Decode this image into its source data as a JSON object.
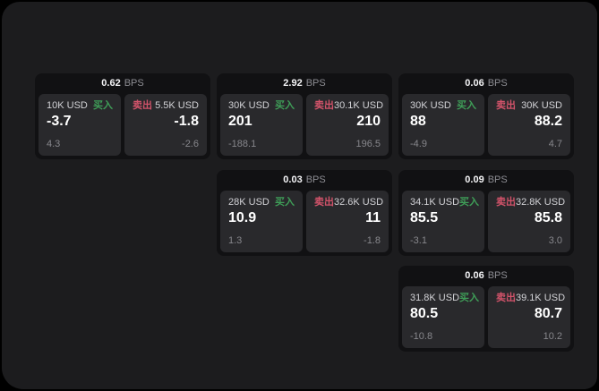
{
  "labels": {
    "bps_unit": "BPS",
    "buy": "买入",
    "sell": "卖出"
  },
  "colors": {
    "outer_bg": "#000000",
    "window_bg": "#1c1c1e",
    "card_bg": "#111113",
    "panel_bg": "#29292c",
    "buy_green": "#3f9e58",
    "sell_red": "#d2536a",
    "value_white": "#ffffff",
    "muted_gray": "#87878c"
  },
  "cards": [
    {
      "bps": "0.62",
      "buy": {
        "amount": "10K USD",
        "price": "-3.7",
        "delta": "4.3"
      },
      "sell": {
        "amount": "5.5K USD",
        "price": "-1.8",
        "delta": "-2.6"
      }
    },
    {
      "bps": "2.92",
      "buy": {
        "amount": "30K USD",
        "price": "201",
        "delta": "-188.1"
      },
      "sell": {
        "amount": "30.1K USD",
        "price": "210",
        "delta": "196.5"
      }
    },
    {
      "bps": "0.06",
      "buy": {
        "amount": "30K USD",
        "price": "88",
        "delta": "-4.9"
      },
      "sell": {
        "amount": "30K USD",
        "price": "88.2",
        "delta": "4.7"
      }
    },
    {
      "bps": "0.03",
      "buy": {
        "amount": "28K USD",
        "price": "10.9",
        "delta": "1.3"
      },
      "sell": {
        "amount": "32.6K USD",
        "price": "11",
        "delta": "-1.8"
      }
    },
    {
      "bps": "0.09",
      "buy": {
        "amount": "34.1K USD",
        "price": "85.5",
        "delta": "-3.1"
      },
      "sell": {
        "amount": "32.8K USD",
        "price": "85.8",
        "delta": "3.0"
      }
    },
    {
      "bps": "0.06",
      "buy": {
        "amount": "31.8K USD",
        "price": "80.5",
        "delta": "-10.8"
      },
      "sell": {
        "amount": "39.1K USD",
        "price": "80.7",
        "delta": "10.2"
      }
    }
  ]
}
